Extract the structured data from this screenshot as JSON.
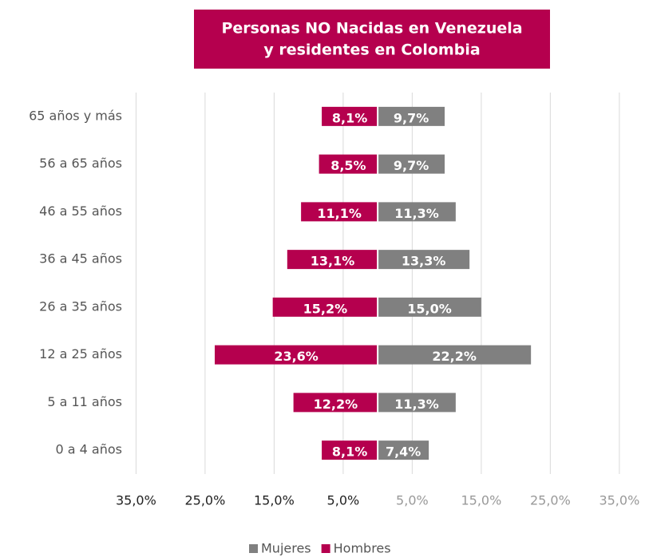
{
  "chart_data": {
    "type": "pyramid",
    "title": [
      "Personas NO Nacidas en Venezuela",
      "y residentes en Colombia"
    ],
    "title_color": "#b5004e",
    "categories": [
      "65 años y más",
      "56 a 65 años",
      "46 a 55 años",
      "36 a 45 años",
      "26 a 35 años",
      "12 a 25 años",
      "5 a 11 años",
      "0 a 4 años"
    ],
    "series": [
      {
        "name": "Mujeres",
        "color": "#808080",
        "values": [
          9.7,
          9.7,
          11.3,
          13.3,
          15.0,
          22.2,
          11.3,
          7.4
        ],
        "value_labels": [
          "9,7%",
          "9,7%",
          "11,3%",
          "13,3%",
          "15,0%",
          "22,2%",
          "11,3%",
          "7,4%"
        ]
      },
      {
        "name": "Hombres",
        "color": "#b5004e",
        "values": [
          -8.1,
          -8.5,
          -11.1,
          -13.1,
          -15.2,
          -23.6,
          -12.2,
          -8.1
        ],
        "value_labels": [
          "8,1%",
          "8,5%",
          "11,1%",
          "13,1%",
          "15,2%",
          "23,6%",
          "12,2%",
          "8,1%"
        ]
      }
    ],
    "xlim": [
      -34.7,
      34.9
    ],
    "xticks": [
      {
        "value": -35,
        "label": "35,0%"
      },
      {
        "value": -25,
        "label": "25,0%"
      },
      {
        "value": -15,
        "label": "15,0%"
      },
      {
        "value": -5,
        "label": "5,0%"
      },
      {
        "value": 5,
        "label": "5,0%"
      },
      {
        "value": 15,
        "label": "15,0%"
      },
      {
        "value": 25,
        "label": "25,0%"
      },
      {
        "value": 35,
        "label": "35,0%"
      }
    ],
    "grid": true,
    "legend": "bottom"
  }
}
